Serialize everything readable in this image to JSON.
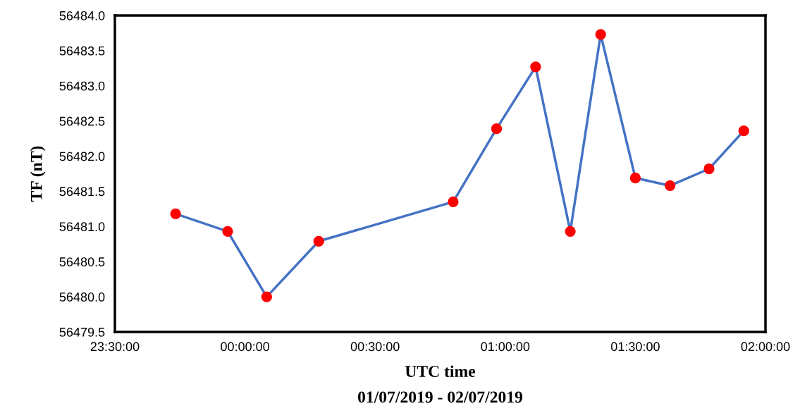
{
  "chart_data": {
    "type": "line",
    "xlabel": "UTC time",
    "ylabel": "TF (nT)",
    "annotations": [
      "01/07/2019 - 02/07/2019"
    ],
    "x": [
      "2019-07-01T23:44",
      "2019-07-01T23:56",
      "2019-07-02T00:05",
      "2019-07-02T00:17",
      "2019-07-02T00:48",
      "2019-07-02T00:58",
      "2019-07-02T01:07",
      "2019-07-02T01:15",
      "2019-07-02T01:22",
      "2019-07-02T01:30",
      "2019-07-02T01:38",
      "2019-07-02T01:47",
      "2019-07-02T01:55"
    ],
    "series": [
      {
        "color": "#4472c4",
        "colors": [
          "#ff0000",
          "#ff0000",
          "#ff0000",
          "#ff0000",
          "#ff0000",
          "#ff0000",
          "#ff0000",
          "#ff0000",
          "#ff0000",
          "#ff0000",
          "#ff0000",
          "#ff0000",
          "#ff0000"
        ],
        "values": [
          56481.18,
          56480.93,
          56480.0,
          56480.79,
          56481.35,
          56482.39,
          56483.27,
          56480.93,
          56483.73,
          56481.69,
          56481.58,
          56481.82,
          56482.36
        ]
      }
    ],
    "marker": "circle",
    "line_style": "solid",
    "xlim": [
      "2019-07-01T23:30",
      "2019-07-02T02:00"
    ],
    "xticks": [
      {
        "value": "2019-07-01T23:30",
        "label": "23:30:00"
      },
      {
        "value": "2019-07-02T00:00",
        "label": "00:00:00"
      },
      {
        "value": "2019-07-02T00:30",
        "label": "00:30:00"
      },
      {
        "value": "2019-07-02T01:00",
        "label": "01:00:00"
      },
      {
        "value": "2019-07-02T01:30",
        "label": "01:30:00"
      },
      {
        "value": "2019-07-02T02:00",
        "label": "02:00:00"
      }
    ],
    "ylim": [
      56479.5,
      56484.0
    ],
    "yticks": [
      {
        "value": 56479.5,
        "label": "56479.5"
      },
      {
        "value": 56480.0,
        "label": "56480.0"
      },
      {
        "value": 56480.5,
        "label": "56480.5"
      },
      {
        "value": 56481.0,
        "label": "56481.0"
      },
      {
        "value": 56481.5,
        "label": "56481.5"
      },
      {
        "value": 56482.0,
        "label": "56482.0"
      },
      {
        "value": 56482.5,
        "label": "56482.5"
      },
      {
        "value": 56483.0,
        "label": "56483.0"
      },
      {
        "value": 56483.5,
        "label": "56483.5"
      },
      {
        "value": 56484.0,
        "label": "56484.0"
      }
    ],
    "grid": false,
    "legend": false
  }
}
